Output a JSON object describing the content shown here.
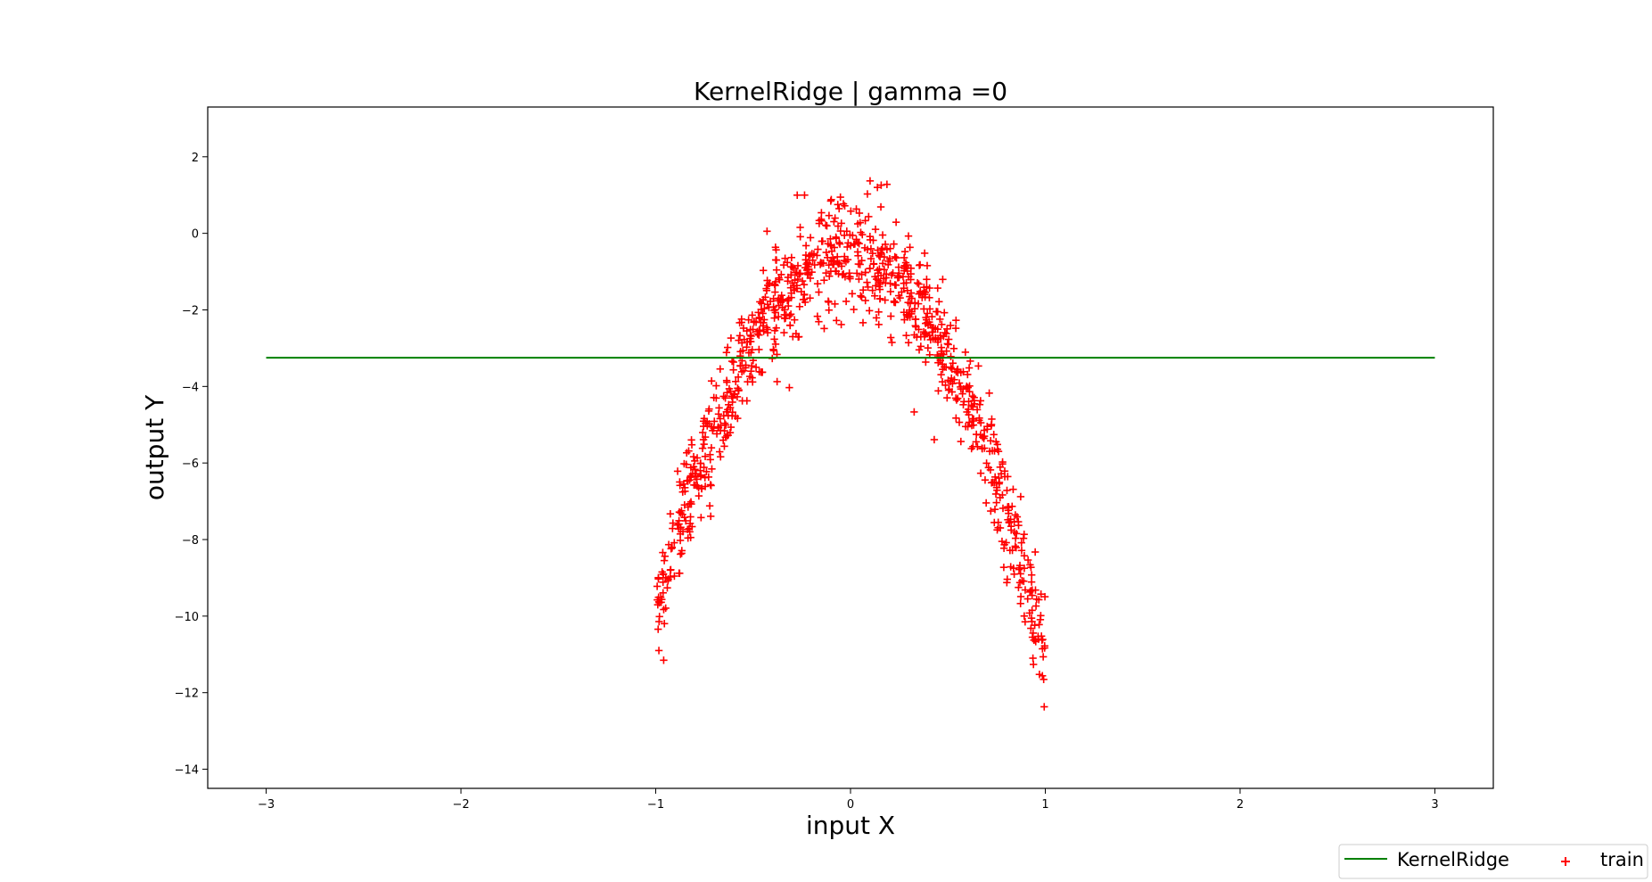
{
  "chart_data": {
    "type": "scatter",
    "title": "KernelRidge | gamma =0",
    "xlabel": "input X",
    "ylabel": "output Y",
    "xlim": [
      -3.3,
      3.3
    ],
    "ylim": [
      -14.5,
      3.3
    ],
    "xticks": [
      -3,
      -2,
      -1,
      0,
      1,
      2,
      3
    ],
    "xtick_labels": [
      "−3",
      "−2",
      "−1",
      "0",
      "1",
      "2",
      "3"
    ],
    "yticks": [
      -14,
      -12,
      -10,
      -8,
      -6,
      -4,
      -2,
      0,
      2
    ],
    "ytick_labels": [
      "−14",
      "−12",
      "−10",
      "−8",
      "−6",
      "−4",
      "−2",
      "0",
      "2"
    ],
    "grid": false,
    "legend_position": "bottom-right",
    "series": [
      {
        "name": "KernelRidge",
        "kind": "line",
        "color": "#008000",
        "x": [
          -3,
          3
        ],
        "y": [
          -3.25,
          -3.25
        ]
      },
      {
        "name": "train",
        "kind": "scatter",
        "marker": "plus",
        "color": "#ff0000",
        "model": "y = -10*x^2 - 0.5*x - 0.5 + noise",
        "x_range": [
          -1,
          1
        ],
        "n_points": 1000,
        "noise_std": 0.7
      }
    ]
  }
}
